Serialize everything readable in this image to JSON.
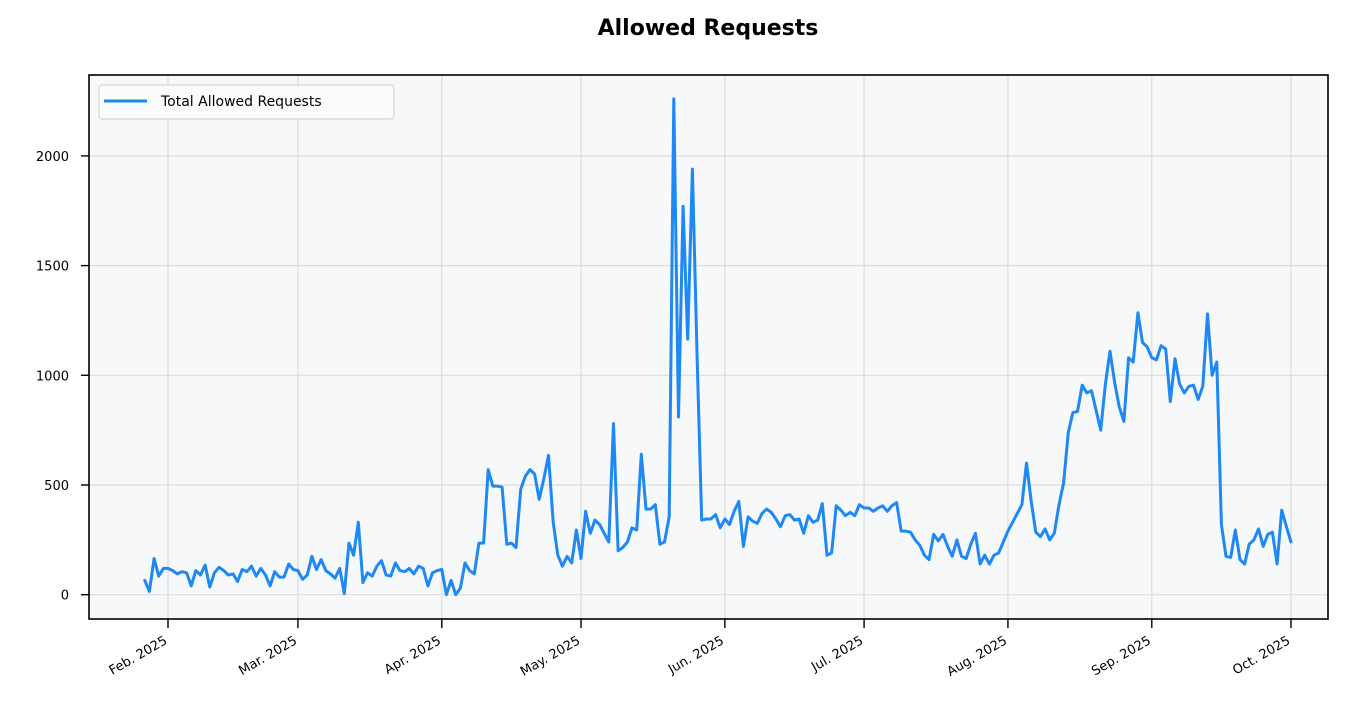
{
  "chart_data": {
    "type": "line",
    "title": "Allowed Requests",
    "xlabel": "",
    "ylabel": "",
    "start_date": "2025-01-27",
    "end_date": "2025-09-27",
    "frequency": "daily",
    "ylim": [
      -110,
      2380
    ],
    "yticks": [
      0,
      500,
      1000,
      1500,
      2000
    ],
    "xtick_labels": [
      "Feb. 2025",
      "Mar. 2025",
      "Apr. 2025",
      "May. 2025",
      "Jun. 2025",
      "Jul. 2025",
      "Aug. 2025",
      "Sep. 2025",
      "Oct. 2025"
    ],
    "grid": true,
    "legend_position": "upper left",
    "series": [
      {
        "name": "Total Allowed Requests",
        "color": "#1e88f5",
        "values": [
          65,
          15,
          165,
          85,
          120,
          120,
          110,
          95,
          105,
          100,
          40,
          110,
          90,
          135,
          35,
          100,
          125,
          110,
          90,
          95,
          60,
          115,
          105,
          130,
          85,
          120,
          90,
          40,
          105,
          80,
          80,
          140,
          115,
          110,
          70,
          90,
          175,
          115,
          160,
          110,
          95,
          75,
          120,
          5,
          235,
          180,
          330,
          55,
          100,
          85,
          130,
          155,
          90,
          85,
          145,
          110,
          105,
          120,
          95,
          130,
          120,
          40,
          100,
          110,
          115,
          0,
          65,
          0,
          30,
          145,
          110,
          95,
          235,
          235,
          570,
          495,
          495,
          490,
          230,
          235,
          215,
          480,
          540,
          570,
          550,
          435,
          530,
          635,
          330,
          180,
          130,
          175,
          145,
          295,
          165,
          380,
          280,
          340,
          320,
          280,
          240,
          780,
          200,
          215,
          240,
          305,
          295,
          640,
          390,
          390,
          410,
          230,
          240,
          355,
          2260,
          810,
          1770,
          1165,
          1940,
          1100,
          340,
          345,
          345,
          365,
          305,
          345,
          320,
          380,
          425,
          220,
          355,
          335,
          325,
          370,
          390,
          375,
          345,
          310,
          360,
          365,
          340,
          345,
          280,
          360,
          330,
          340,
          415,
          180,
          190,
          405,
          385,
          360,
          375,
          360,
          410,
          395,
          395,
          380,
          395,
          405,
          380,
          405,
          420,
          290,
          290,
          285,
          250,
          225,
          180,
          160,
          275,
          245,
          275,
          220,
          175,
          250,
          175,
          165,
          230,
          280,
          140,
          180,
          140,
          180,
          190,
          240,
          290,
          330,
          370,
          410,
          600,
          430,
          285,
          265,
          300,
          250,
          280,
          410,
          510,
          740,
          830,
          835,
          955,
          920,
          930,
          840,
          750,
          960,
          1110,
          965,
          855,
          790,
          1080,
          1060,
          1285,
          1150,
          1130,
          1080,
          1070,
          1135,
          1120,
          880,
          1075,
          960,
          920,
          950,
          955,
          890,
          950,
          1280,
          1000,
          1060,
          320,
          175,
          170,
          295,
          160,
          140,
          230,
          250,
          300,
          220,
          275,
          285,
          140,
          385,
          310,
          240
        ]
      }
    ]
  },
  "legend": {
    "label": "Total Allowed Requests"
  }
}
